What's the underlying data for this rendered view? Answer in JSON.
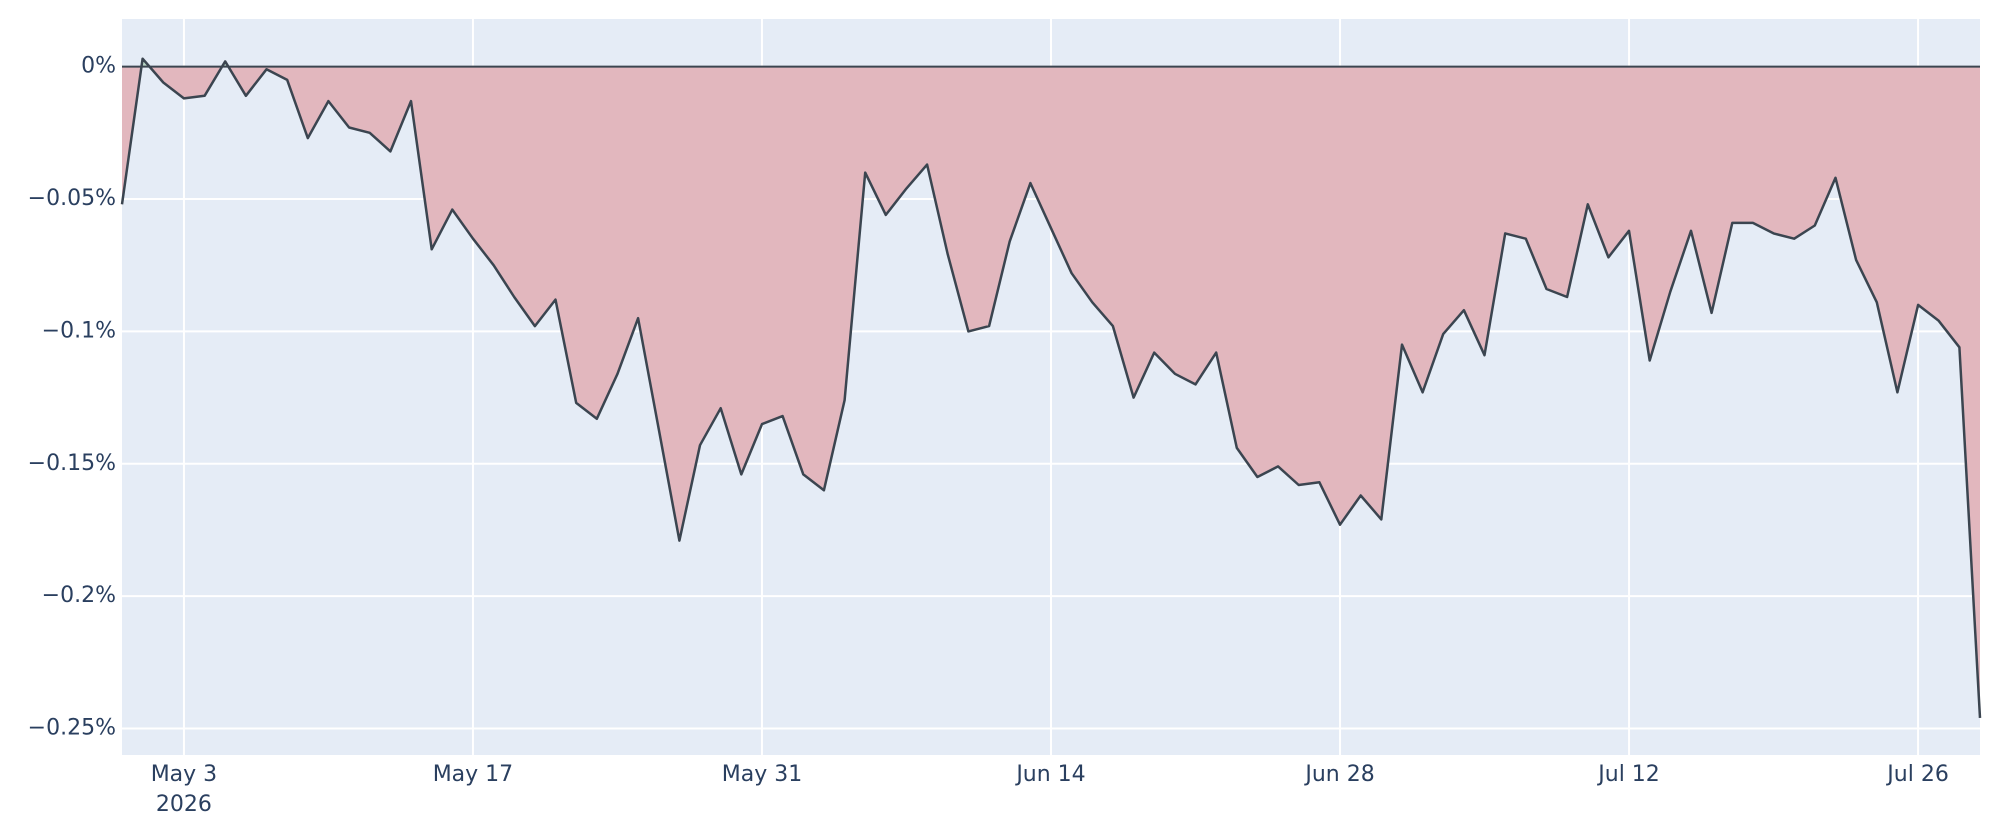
{
  "chart_data": {
    "type": "area_line",
    "x": [
      "2026-04-30",
      "2026-05-01",
      "2026-05-02",
      "2026-05-03",
      "2026-05-04",
      "2026-05-05",
      "2026-05-06",
      "2026-05-07",
      "2026-05-08",
      "2026-05-09",
      "2026-05-10",
      "2026-05-11",
      "2026-05-12",
      "2026-05-13",
      "2026-05-14",
      "2026-05-15",
      "2026-05-16",
      "2026-05-17",
      "2026-05-18",
      "2026-05-19",
      "2026-05-20",
      "2026-05-21",
      "2026-05-22",
      "2026-05-23",
      "2026-05-24",
      "2026-05-25",
      "2026-05-26",
      "2026-05-27",
      "2026-05-28",
      "2026-05-29",
      "2026-05-30",
      "2026-05-31",
      "2026-06-01",
      "2026-06-02",
      "2026-06-03",
      "2026-06-04",
      "2026-06-05",
      "2026-06-06",
      "2026-06-07",
      "2026-06-08",
      "2026-06-09",
      "2026-06-10",
      "2026-06-11",
      "2026-06-12",
      "2026-06-13",
      "2026-06-14",
      "2026-06-15",
      "2026-06-16",
      "2026-06-17",
      "2026-06-18",
      "2026-06-19",
      "2026-06-20",
      "2026-06-21",
      "2026-06-22",
      "2026-06-23",
      "2026-06-24",
      "2026-06-25",
      "2026-06-26",
      "2026-06-27",
      "2026-06-28",
      "2026-06-29",
      "2026-06-30",
      "2026-07-01",
      "2026-07-02",
      "2026-07-03",
      "2026-07-04",
      "2026-07-05",
      "2026-07-06",
      "2026-07-07",
      "2026-07-08",
      "2026-07-09",
      "2026-07-10",
      "2026-07-11",
      "2026-07-12",
      "2026-07-13",
      "2026-07-14",
      "2026-07-15",
      "2026-07-16",
      "2026-07-17",
      "2026-07-18",
      "2026-07-19",
      "2026-07-20",
      "2026-07-21",
      "2026-07-22",
      "2026-07-23",
      "2026-07-24",
      "2026-07-25",
      "2026-07-26",
      "2026-07-27",
      "2026-07-28",
      "2026-07-29"
    ],
    "values": [
      -0.052,
      0.003,
      -0.006,
      -0.012,
      -0.011,
      0.002,
      -0.011,
      -0.001,
      -0.005,
      -0.027,
      -0.013,
      -0.023,
      -0.025,
      -0.032,
      -0.013,
      -0.069,
      -0.054,
      -0.065,
      -0.075,
      -0.087,
      -0.098,
      -0.088,
      -0.127,
      -0.133,
      -0.116,
      -0.095,
      -0.137,
      -0.179,
      -0.143,
      -0.129,
      -0.154,
      -0.135,
      -0.132,
      -0.154,
      -0.16,
      -0.126,
      -0.04,
      -0.056,
      -0.046,
      -0.037,
      -0.071,
      -0.1,
      -0.098,
      -0.066,
      -0.044,
      -0.061,
      -0.078,
      -0.089,
      -0.098,
      -0.125,
      -0.108,
      -0.116,
      -0.12,
      -0.108,
      -0.144,
      -0.155,
      -0.151,
      -0.158,
      -0.157,
      -0.173,
      -0.162,
      -0.171,
      -0.105,
      -0.123,
      -0.101,
      -0.092,
      -0.109,
      -0.063,
      -0.065,
      -0.084,
      -0.087,
      -0.052,
      -0.072,
      -0.062,
      -0.111,
      -0.085,
      -0.062,
      -0.093,
      -0.059,
      -0.059,
      -0.063,
      -0.065,
      -0.06,
      -0.042,
      -0.073,
      -0.089,
      -0.123,
      -0.09,
      -0.096,
      -0.106,
      -0.246
    ],
    "color": "#3b4550",
    "negative_color": "#e2b7be",
    "positive_color": "#b9d6c6",
    "background": "#e5ecf6",
    "grid": true,
    "xlim": [
      "2026-04-30",
      "2026-07-29"
    ],
    "xticks": [
      {
        "value": "2026-05-03",
        "label": "May 3"
      },
      {
        "value": "2026-05-17",
        "label": "May 17"
      },
      {
        "value": "2026-05-31",
        "label": "May 31"
      },
      {
        "value": "2026-06-14",
        "label": "Jun 14"
      },
      {
        "value": "2026-06-28",
        "label": "Jun 28"
      },
      {
        "value": "2026-07-12",
        "label": "Jul 12"
      },
      {
        "value": "2026-07-26",
        "label": "Jul 26"
      }
    ],
    "x_year_label": "2026",
    "ylim": [
      -0.26,
      0.018
    ],
    "yticks": [
      {
        "value": 0,
        "label": "0%"
      },
      {
        "value": -0.05,
        "label": "−0.05%"
      },
      {
        "value": -0.1,
        "label": "−0.1%"
      },
      {
        "value": -0.15,
        "label": "−0.15%"
      },
      {
        "value": -0.2,
        "label": "−0.2%"
      },
      {
        "value": -0.25,
        "label": "−0.25%"
      }
    ]
  }
}
